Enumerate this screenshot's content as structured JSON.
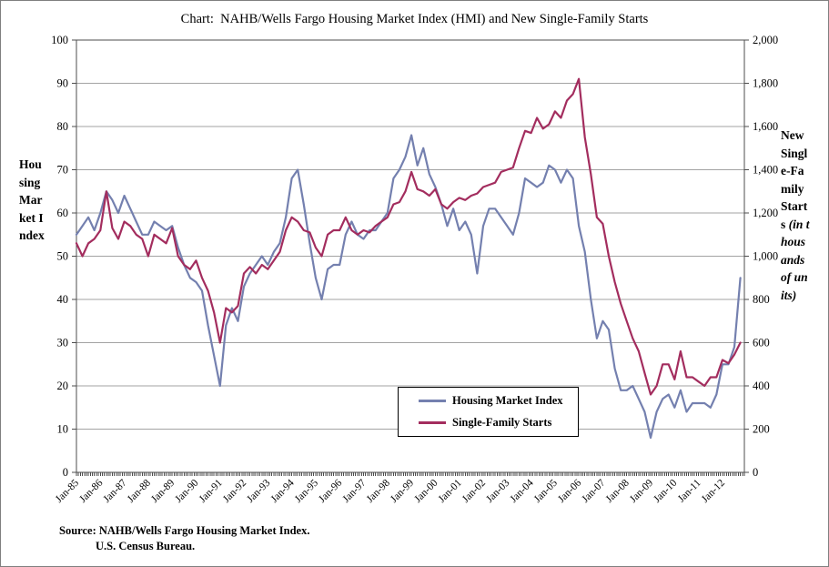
{
  "figure": {
    "title": "Chart:  NAHB/Wells Fargo Housing Market Index (HMI) and New Single-Family Starts",
    "source_line1": "Source: NAHB/Wells Fargo Housing Market Index.",
    "source_line2": "U.S. Census Bureau."
  },
  "left_axis": {
    "title": "Housing Market Index",
    "ticks": [
      "100",
      "90",
      "80",
      "70",
      "60",
      "50",
      "40",
      "30",
      "20",
      "10",
      "0"
    ]
  },
  "right_axis": {
    "title": "New Single-Family Starts",
    "subtitle": "(in thousands of units)",
    "ticks": [
      "2,000",
      "1,800",
      "1,600",
      "1,400",
      "1,200",
      "1,000",
      "800",
      "600",
      "400",
      "200",
      "0"
    ]
  },
  "legend": {
    "items": [
      {
        "label": "Housing Market Index",
        "color": "#7480AF"
      },
      {
        "label": "Single-Family Starts",
        "color": "#A32D5E"
      }
    ]
  },
  "chart_data": {
    "type": "line",
    "title": "Chart: NAHB/Wells Fargo Housing Market Index (HMI) and New Single-Family Starts",
    "x_tick_labels": [
      "Jan-85",
      "Jan-86",
      "Jan-87",
      "Jan-88",
      "Jan-89",
      "Jan-90",
      "Jan-91",
      "Jan-92",
      "Jan-93",
      "Jan-94",
      "Jan-95",
      "Jan-96",
      "Jan-97",
      "Jan-98",
      "Jan-99",
      "Jan-00",
      "Jan-01",
      "Jan-02",
      "Jan-03",
      "Jan-04",
      "Jan-05",
      "Jan-06",
      "Jan-07",
      "Jan-08",
      "Jan-09",
      "Jan-10",
      "Jan-11",
      "Jan-12"
    ],
    "x_start": "Jan-85",
    "x_end": "Dec-12",
    "points_interval_months": 3,
    "total_months": 335,
    "grid": "horizontal",
    "legend_position": "inside-lower-center",
    "y_left": {
      "label": "Housing Market Index",
      "min": 0,
      "max": 100,
      "step": 10
    },
    "y_right": {
      "label": "New Single-Family Starts (in thousands of units)",
      "min": 0,
      "max": 2000,
      "step": 200
    },
    "series": [
      {
        "name": "Housing Market Index",
        "axis": "left",
        "color": "#7480AF",
        "values": [
          55,
          57,
          59,
          56,
          60,
          65,
          63,
          60,
          64,
          61,
          58,
          55,
          55,
          58,
          57,
          56,
          57,
          52,
          48,
          45,
          44,
          42,
          34,
          27,
          20,
          34,
          38,
          35,
          43,
          46,
          48,
          50,
          48,
          51,
          53,
          59,
          68,
          70,
          62,
          53,
          45,
          40,
          47,
          48,
          48,
          55,
          58,
          55,
          54,
          56,
          56,
          58,
          60,
          68,
          70,
          73,
          78,
          71,
          75,
          69,
          66,
          62,
          57,
          61,
          56,
          58,
          55,
          46,
          57,
          61,
          61,
          59,
          57,
          55,
          60,
          68,
          67,
          66,
          67,
          71,
          70,
          67,
          70,
          68,
          57,
          51,
          40,
          31,
          35,
          33,
          24,
          19,
          19,
          20,
          17,
          14,
          8,
          14,
          17,
          18,
          15,
          19,
          14,
          16,
          16,
          16,
          15,
          18,
          25,
          25,
          29,
          45
        ]
      },
      {
        "name": "Single-Family Starts",
        "axis": "right",
        "color": "#A32D5E",
        "values": [
          1060,
          1000,
          1060,
          1080,
          1120,
          1300,
          1130,
          1080,
          1160,
          1140,
          1100,
          1080,
          1000,
          1100,
          1080,
          1060,
          1130,
          1000,
          960,
          940,
          980,
          900,
          840,
          740,
          600,
          760,
          740,
          770,
          920,
          950,
          920,
          960,
          940,
          980,
          1020,
          1120,
          1180,
          1160,
          1120,
          1110,
          1040,
          1000,
          1100,
          1120,
          1120,
          1180,
          1120,
          1100,
          1120,
          1110,
          1140,
          1160,
          1180,
          1240,
          1250,
          1300,
          1390,
          1310,
          1300,
          1280,
          1310,
          1240,
          1220,
          1250,
          1270,
          1260,
          1280,
          1290,
          1320,
          1330,
          1340,
          1390,
          1400,
          1410,
          1500,
          1580,
          1570,
          1640,
          1590,
          1610,
          1670,
          1640,
          1720,
          1750,
          1820,
          1550,
          1380,
          1180,
          1150,
          1000,
          880,
          780,
          700,
          620,
          560,
          460,
          360,
          400,
          500,
          500,
          430,
          560,
          440,
          440,
          420,
          400,
          440,
          440,
          520,
          505,
          545,
          600
        ]
      }
    ]
  },
  "style": {
    "gridline_color": "#A3A3A3",
    "axis_color": "#4D4D4D",
    "plot_background": "#FFFFFF"
  }
}
